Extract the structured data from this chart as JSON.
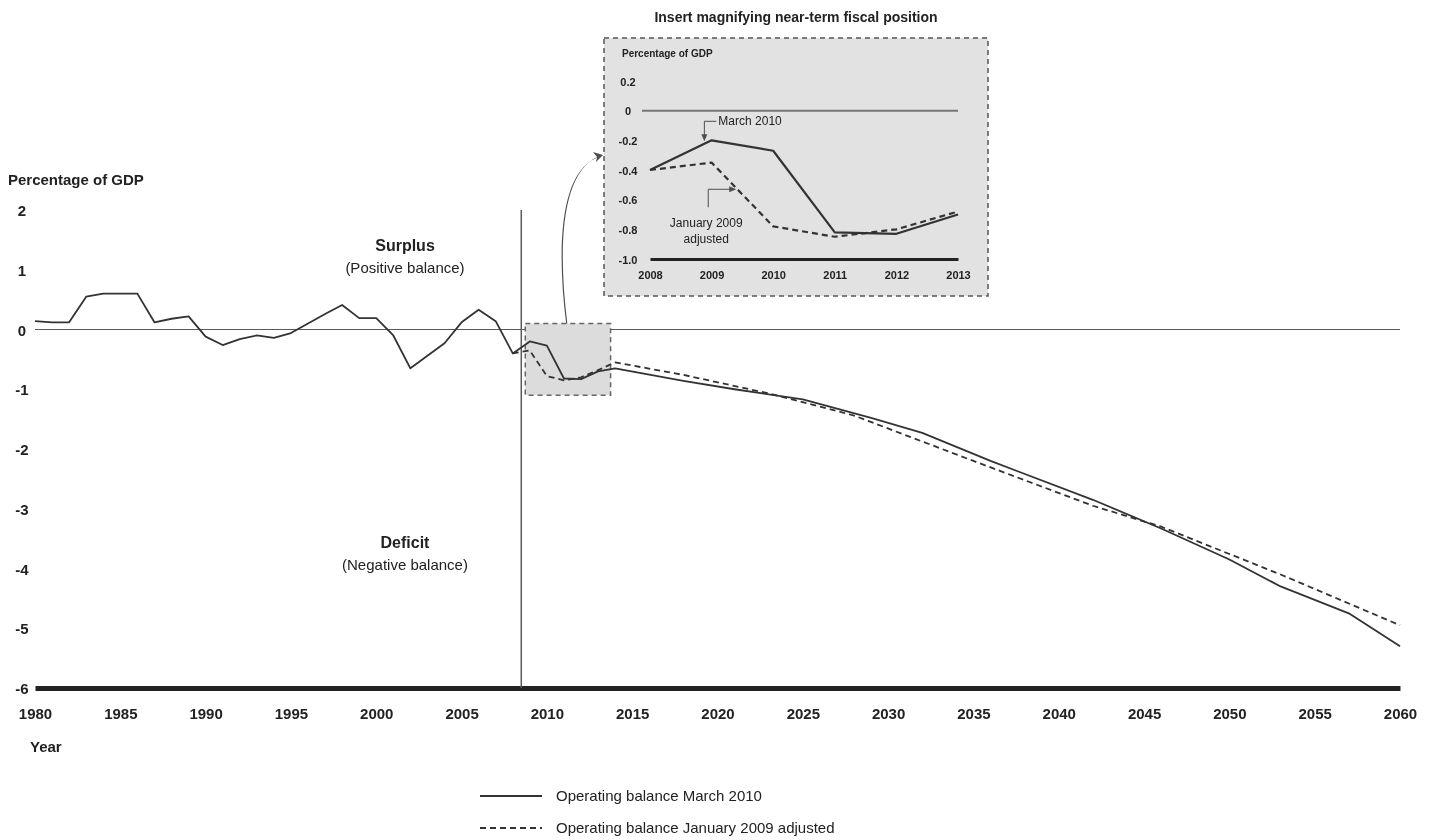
{
  "chart_data": [
    {
      "type": "line",
      "xlabel": "Year",
      "ylabel": "Percentage of GDP",
      "xlim": [
        1980,
        2060
      ],
      "xticks": [
        1980,
        1985,
        1990,
        1995,
        2000,
        2005,
        2010,
        2015,
        2020,
        2025,
        2030,
        2035,
        2040,
        2045,
        2050,
        2055,
        2060
      ],
      "ylim": [
        -6,
        2
      ],
      "yticks": [
        -6,
        -5,
        -4,
        -3,
        -2,
        -1,
        0,
        1,
        2
      ],
      "grid": false,
      "legend": "bottom",
      "annotations": [
        "Surplus",
        "(Positive balance)",
        "Deficit",
        "(Negative balance)"
      ],
      "ref_lines": [
        {
          "axis": "y",
          "value": 0,
          "label": null
        },
        {
          "axis": "x",
          "value": 2008.5,
          "label": null
        }
      ],
      "series": [
        {
          "name": "Operating balance March 2010",
          "color": "#333333",
          "line_style": "solid",
          "x": [
            1980,
            1981,
            1982,
            1983,
            1984,
            1985,
            1986,
            1987,
            1988,
            1989,
            1990,
            1991,
            1992,
            1993,
            1994,
            1995,
            1996,
            1997,
            1998,
            1999,
            2000,
            2001,
            2002,
            2003,
            2004,
            2005,
            2006,
            2007,
            2008,
            2009,
            2010,
            2011,
            2012,
            2013,
            2014,
            2018,
            2021,
            2025,
            2029,
            2032,
            2036,
            2042,
            2046,
            2050,
            2053,
            2057,
            2060
          ],
          "values": [
            0.14,
            0.12,
            0.12,
            0.55,
            0.6,
            0.6,
            0.6,
            0.12,
            0.18,
            0.22,
            -0.12,
            -0.26,
            -0.16,
            -0.1,
            -0.14,
            -0.06,
            0.1,
            0.26,
            0.41,
            0.19,
            0.19,
            -0.1,
            -0.65,
            -0.44,
            -0.23,
            0.12,
            0.33,
            0.14,
            -0.4,
            -0.2,
            -0.27,
            -0.82,
            -0.83,
            -0.7,
            -0.65,
            -0.86,
            -1.0,
            -1.17,
            -1.48,
            -1.73,
            -2.2,
            -2.85,
            -3.33,
            -3.85,
            -4.3,
            -4.75,
            -5.3
          ]
        },
        {
          "name": "Operating balance January 2009 adjusted",
          "color": "#333333",
          "line_style": "dashed",
          "x": [
            2008,
            2009,
            2010,
            2011,
            2012,
            2013,
            2014,
            2018,
            2023,
            2028,
            2035,
            2042,
            2046,
            2053,
            2060
          ],
          "values": [
            -0.4,
            -0.35,
            -0.78,
            -0.85,
            -0.8,
            -0.68,
            -0.55,
            -0.76,
            -1.07,
            -1.44,
            -2.2,
            -2.95,
            -3.3,
            -4.1,
            -4.95
          ]
        }
      ]
    },
    {
      "type": "line",
      "title": "Insert magnifying near-term fiscal position",
      "ylabel": "Percentage of GDP",
      "xlim": [
        2008,
        2013
      ],
      "xticks": [
        2008,
        2009,
        2010,
        2011,
        2012,
        2013
      ],
      "ylim": [
        -1,
        0.2
      ],
      "yticks": [
        {
          "value": -1,
          "label": "-1.0"
        },
        -0.8,
        -0.6,
        -0.4,
        -0.2,
        0,
        0.2
      ],
      "grid": false,
      "annotations": [
        {
          "text": "March 2010",
          "x": 2008.85,
          "y": -0.22
        },
        {
          "text": "January 2009 adjusted",
          "x": 2009.4,
          "y": -0.53
        }
      ],
      "ref_lines": [
        {
          "axis": "y",
          "value": 0,
          "label": null
        }
      ],
      "series": [
        {
          "color": "#333333",
          "line_style": "solid",
          "x": [
            2008,
            2009,
            2010,
            2011,
            2012,
            2013
          ],
          "values": [
            -0.4,
            -0.2,
            -0.27,
            -0.82,
            -0.83,
            -0.7
          ]
        },
        {
          "color": "#333333",
          "line_style": "dashed",
          "x": [
            2008,
            2009,
            2010,
            2011,
            2012,
            2013
          ],
          "values": [
            -0.4,
            -0.35,
            -0.78,
            -0.85,
            -0.8,
            -0.68
          ]
        }
      ]
    }
  ]
}
